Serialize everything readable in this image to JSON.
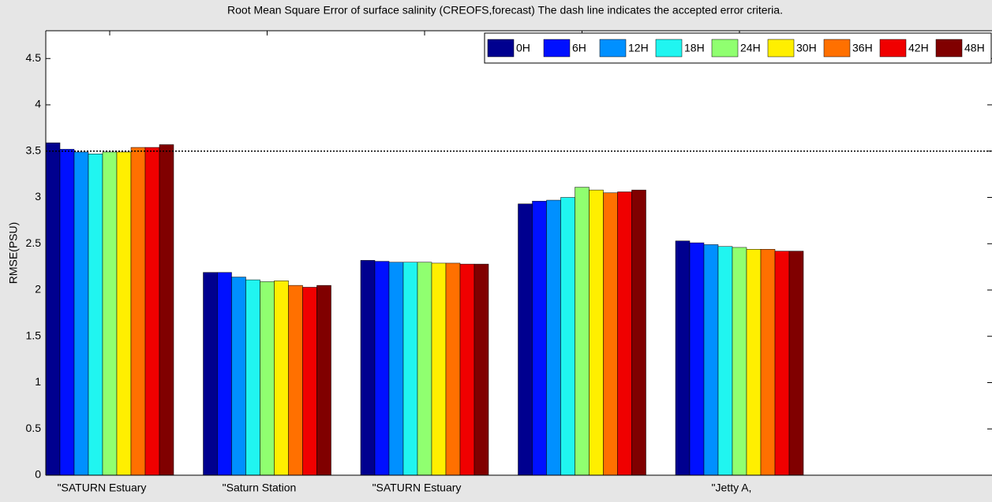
{
  "chart_data": {
    "type": "bar",
    "title": "Root Mean Square Error of surface salinity  (CREOFS,forecast)   The dash line indicates the accepted error criteria.",
    "ylabel": "RMSE(PSU)",
    "categories": [
      "\"SATURN Estuary",
      "\"Saturn Station",
      "\"SATURN Estuary",
      null,
      "\"Jetty A,"
    ],
    "series": [
      {
        "name": "0H",
        "color": "#00008f",
        "values": [
          3.59,
          2.19,
          2.32,
          2.93,
          2.53
        ]
      },
      {
        "name": "6H",
        "color": "#0010ff",
        "values": [
          3.52,
          2.19,
          2.31,
          2.96,
          2.51
        ]
      },
      {
        "name": "12H",
        "color": "#0090ff",
        "values": [
          3.49,
          2.14,
          2.3,
          2.97,
          2.49
        ]
      },
      {
        "name": "18H",
        "color": "#20f5f0",
        "values": [
          3.47,
          2.11,
          2.3,
          3.0,
          2.47
        ]
      },
      {
        "name": "24H",
        "color": "#90ff70",
        "values": [
          3.49,
          2.09,
          2.3,
          3.11,
          2.46
        ]
      },
      {
        "name": "30H",
        "color": "#ffef00",
        "values": [
          3.49,
          2.1,
          2.29,
          3.08,
          2.44
        ]
      },
      {
        "name": "36H",
        "color": "#ff7000",
        "values": [
          3.54,
          2.05,
          2.29,
          3.05,
          2.44
        ]
      },
      {
        "name": "42H",
        "color": "#f00000",
        "values": [
          3.54,
          2.03,
          2.28,
          3.06,
          2.42
        ]
      },
      {
        "name": "48H",
        "color": "#800000",
        "values": [
          3.57,
          2.05,
          2.28,
          3.08,
          2.42
        ]
      }
    ],
    "criteria": 3.5,
    "ylim": [
      0,
      4.8
    ],
    "yticks": [
      0,
      0.5,
      1,
      1.5,
      2,
      2.5,
      3,
      3.5,
      4,
      4.5
    ],
    "legend": "top-right"
  }
}
